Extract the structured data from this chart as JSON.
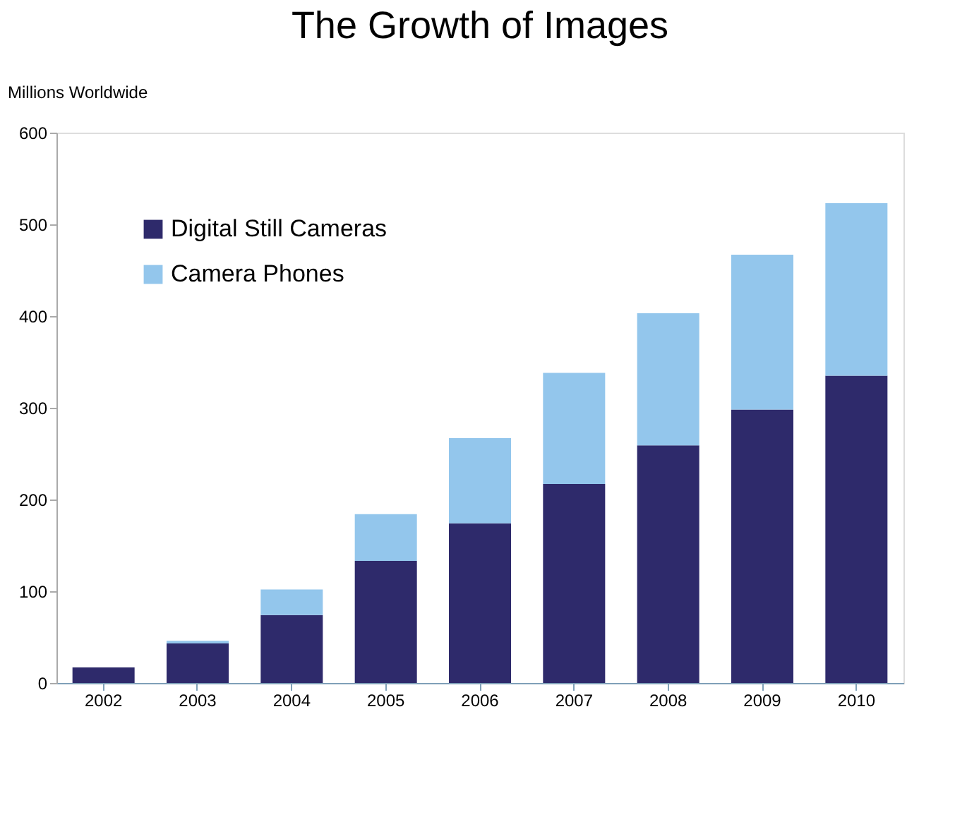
{
  "chart_data": {
    "type": "bar",
    "title": "The Growth of Images",
    "ylabel": "Millions Worldwide",
    "stacked": true,
    "legend": "top left",
    "grid": false,
    "categories": [
      "2002",
      "2003",
      "2004",
      "2005",
      "2006",
      "2007",
      "2008",
      "2009",
      "2010"
    ],
    "series": [
      {
        "name": "Digital Still Cameras",
        "color": "#2e2a6b",
        "values": [
          17,
          43,
          74,
          133,
          174,
          217,
          259,
          298,
          335
        ]
      },
      {
        "name": "Camera Phones",
        "color": "#93c6ec",
        "values": [
          0,
          3,
          28,
          51,
          93,
          121,
          144,
          169,
          188
        ]
      }
    ],
    "ylim": [
      0,
      600
    ],
    "yticks": [
      0,
      100,
      200,
      300,
      400,
      500,
      600
    ]
  }
}
